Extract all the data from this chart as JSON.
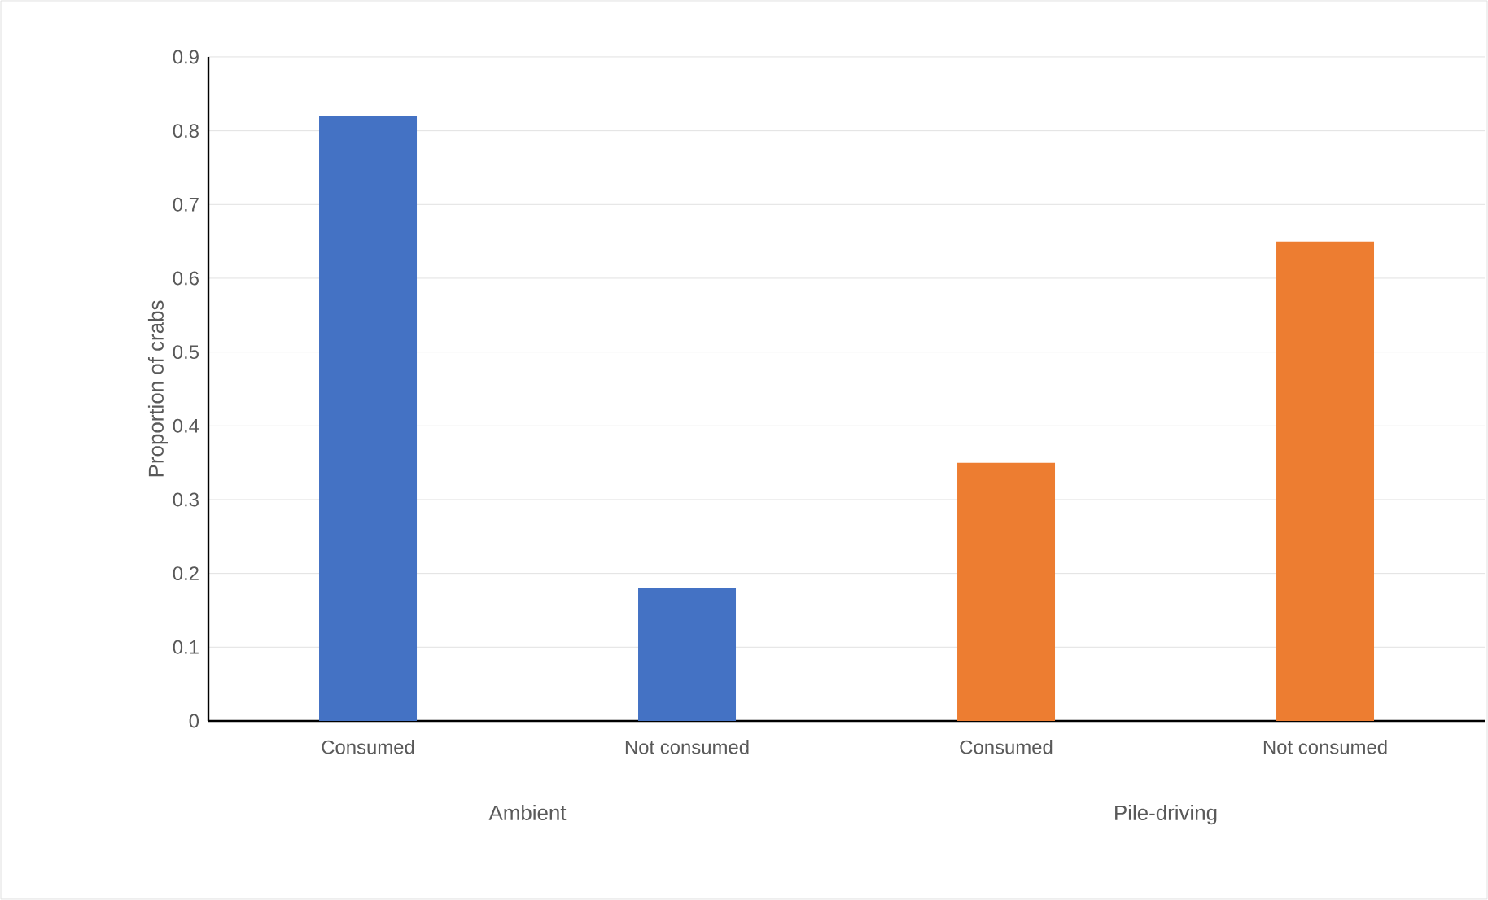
{
  "chart_data": {
    "type": "bar",
    "ylabel": "Proportion of crabs",
    "categories": [
      "Consumed",
      "Not consumed",
      "Consumed",
      "Not consumed"
    ],
    "values": [
      0.82,
      0.18,
      0.35,
      0.65
    ],
    "colors": [
      "#4472c4",
      "#4472c4",
      "#ed7d31",
      "#ed7d31"
    ],
    "ylim": [
      0,
      0.9
    ],
    "yticks": [
      0,
      0.1,
      0.2,
      0.3,
      0.4,
      0.5,
      0.6,
      0.7,
      0.8,
      0.9
    ],
    "grid": "y",
    "annotations": [
      "Ambient",
      "Pile-driving"
    ]
  }
}
